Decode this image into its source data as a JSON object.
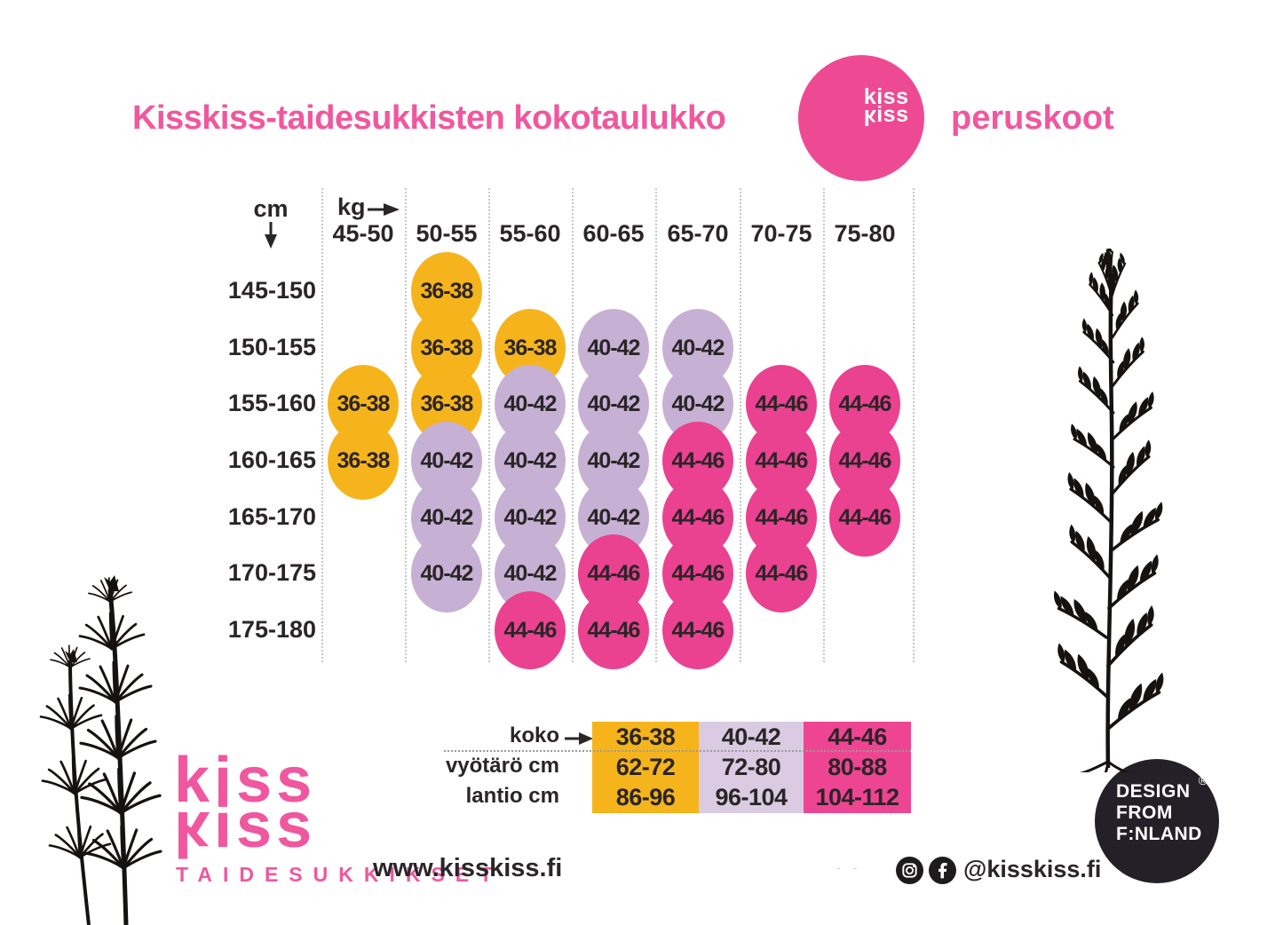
{
  "header": {
    "title": "Kisskiss-taidesukkisten kokotaulukko",
    "subtitle": "peruskoot",
    "logo_text_line1": "kiss",
    "logo_text_line2": "kiss"
  },
  "chart_data": {
    "type": "heatmap",
    "title": "Kisskiss-taidesukkisten kokotaulukko",
    "subtitle": "peruskoot",
    "x_axis": {
      "label": "kg",
      "categories": [
        "45-50",
        "50-55",
        "55-60",
        "60-65",
        "65-70",
        "70-75",
        "75-80"
      ]
    },
    "y_axis": {
      "label": "cm",
      "categories": [
        "145-150",
        "150-155",
        "155-160",
        "160-165",
        "165-170",
        "170-175",
        "175-180"
      ]
    },
    "cells": [
      [
        null,
        "36-38",
        null,
        null,
        null,
        null,
        null
      ],
      [
        null,
        "36-38",
        "36-38",
        "40-42",
        "40-42",
        null,
        null
      ],
      [
        "36-38",
        "36-38",
        "40-42",
        "40-42",
        "40-42",
        "44-46",
        "44-46"
      ],
      [
        "36-38",
        "40-42",
        "40-42",
        "40-42",
        "44-46",
        "44-46",
        "44-46"
      ],
      [
        null,
        "40-42",
        "40-42",
        "40-42",
        "44-46",
        "44-46",
        "44-46"
      ],
      [
        null,
        "40-42",
        "40-42",
        "44-46",
        "44-46",
        "44-46",
        null
      ],
      [
        null,
        null,
        "44-46",
        "44-46",
        "44-46",
        null,
        null
      ]
    ],
    "size_colors": {
      "36-38": "#F6B41C",
      "40-42": "#C6B0D4",
      "44-46": "#EA4190"
    },
    "legend": {
      "row_labels": [
        "koko",
        "vyötärö cm",
        "lantio cm"
      ],
      "columns": [
        {
          "koko": "36-38",
          "vyotaro_cm": "62-72",
          "lantio_cm": "86-96",
          "color": "#F6B41C"
        },
        {
          "koko": "40-42",
          "vyotaro_cm": "72-80",
          "lantio_cm": "96-104",
          "color": "#DACAE2"
        },
        {
          "koko": "44-46",
          "vyotaro_cm": "80-88",
          "lantio_cm": "104-112",
          "color": "#EE4593"
        }
      ]
    }
  },
  "footer": {
    "logo_line1": "kiss",
    "logo_line2": "kiss",
    "tagline": "TAIDESUKKIKSET",
    "website": "www.kisskiss.fi",
    "social_handle": "@kisskiss.fi",
    "faint_marks": "- -"
  },
  "badge": {
    "line1": "DESIGN",
    "line2": "FROM",
    "line3": "F:NLAND",
    "registered": "®"
  },
  "icons": {
    "social": [
      "instagram-icon",
      "facebook-icon"
    ],
    "decorations": [
      "horsetail-illustration",
      "mugwort-illustration"
    ]
  },
  "colors": {
    "brand_pink": "#F0579E",
    "logo_circle_pink": "#EE4A94",
    "bubble_yellow": "#F6B41C",
    "bubble_lavender": "#C6B0D4",
    "bubble_pink": "#EA4190",
    "legend_lavender": "#DACAE2",
    "text_dark": "#2A2527",
    "badge_black": "#232127"
  }
}
